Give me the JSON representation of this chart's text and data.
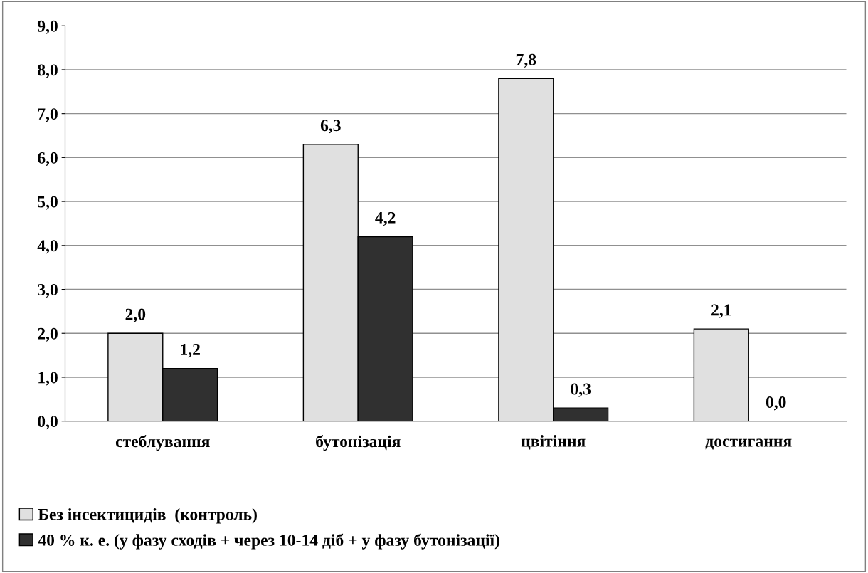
{
  "chart_data": {
    "type": "bar",
    "categories": [
      "стеблування",
      "бутонізація",
      "цвітіння",
      "достигання"
    ],
    "series": [
      {
        "name": "Без інсектицидів  (контроль)",
        "color": "#e0e0e0",
        "values": [
          2.0,
          6.3,
          7.8,
          2.1
        ],
        "value_labels": [
          "2,0",
          "6,3",
          "7,8",
          "2,1"
        ]
      },
      {
        "name": "40 % к. е. (у фазу сходів + через 10-14 діб + у фазу бутонізації)",
        "color": "#303030",
        "values": [
          1.2,
          4.2,
          0.3,
          0.0
        ],
        "value_labels": [
          "1,2",
          "4,2",
          "0,3",
          "0,0"
        ]
      }
    ],
    "ylim": [
      0,
      9
    ],
    "yticks": [
      {
        "value": 0,
        "label": "0,0"
      },
      {
        "value": 1,
        "label": "1,0"
      },
      {
        "value": 2,
        "label": "2,0"
      },
      {
        "value": 3,
        "label": "3,0"
      },
      {
        "value": 4,
        "label": "4,0"
      },
      {
        "value": 5,
        "label": "5,0"
      },
      {
        "value": 6,
        "label": "6,0"
      },
      {
        "value": 7,
        "label": "7,0"
      },
      {
        "value": 8,
        "label": "8,0"
      },
      {
        "value": 9,
        "label": "9,0"
      }
    ],
    "grid": "y",
    "legend": "bottom left"
  }
}
